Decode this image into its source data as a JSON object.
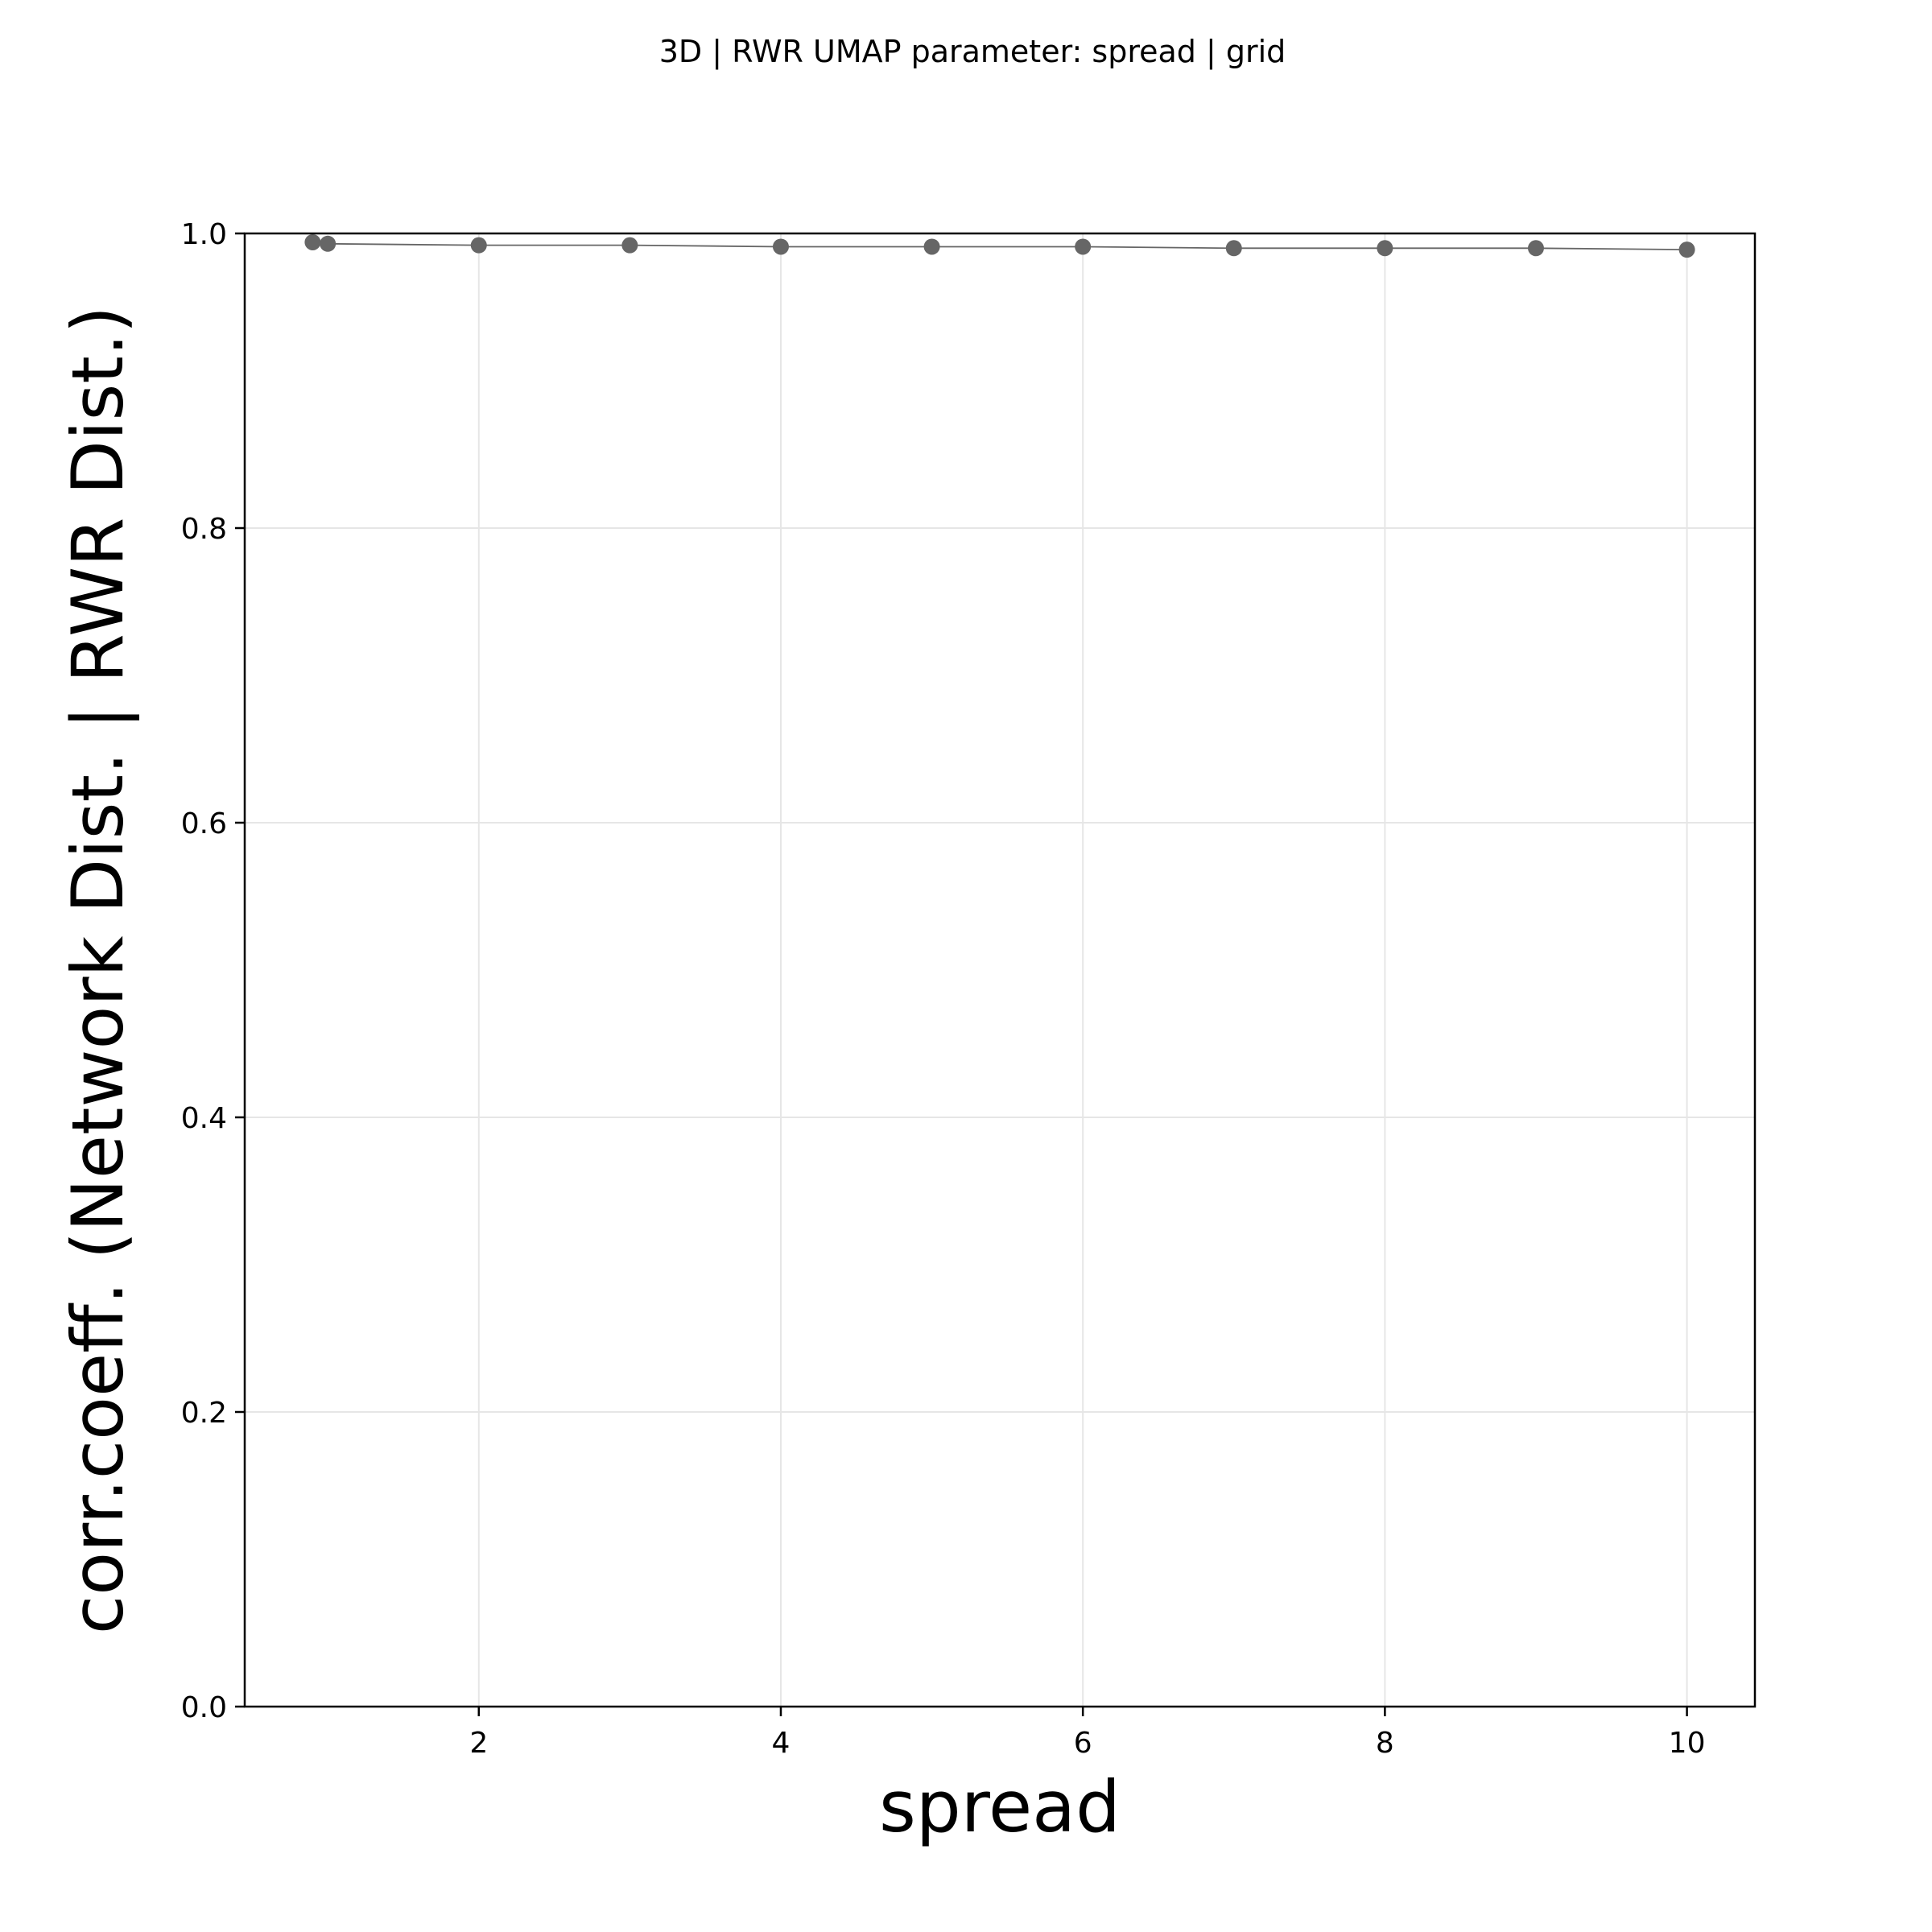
{
  "chart_data": {
    "type": "line",
    "title": "3D | RWR UMAP parameter: spread | grid",
    "xlabel": "spread",
    "ylabel": "corr.coeff. (Network Dist. | RWR Dist.)",
    "xlim": [
      0.45,
      10.45
    ],
    "ylim": [
      0.0,
      1.0
    ],
    "xticks": [
      2,
      4,
      6,
      8,
      10
    ],
    "xtick_labels": [
      "2",
      "4",
      "6",
      "8",
      "10"
    ],
    "yticks": [
      0.0,
      0.2,
      0.4,
      0.6,
      0.8,
      1.0
    ],
    "ytick_labels": [
      "0.0",
      "0.2",
      "0.4",
      "0.6",
      "0.8",
      "1.0"
    ],
    "grid": true,
    "series": [
      {
        "color": "#666666",
        "x": [
          0.9,
          1.0,
          2,
          3,
          4,
          5,
          6,
          7,
          8,
          9,
          10
        ],
        "y": [
          0.994,
          0.993,
          0.992,
          0.992,
          0.991,
          0.991,
          0.991,
          0.99,
          0.99,
          0.99,
          0.989
        ]
      }
    ]
  }
}
